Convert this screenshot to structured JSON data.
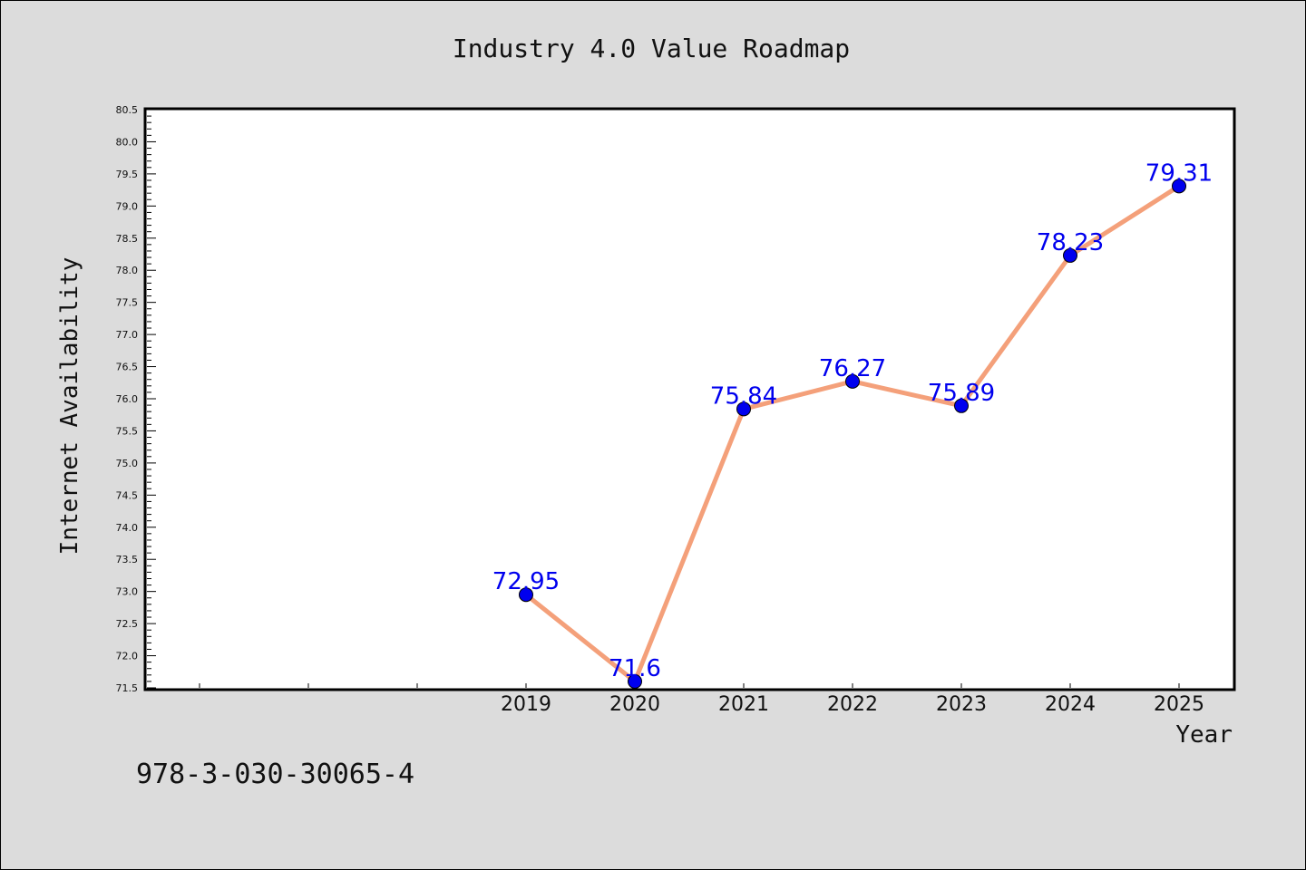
{
  "chart_data": {
    "type": "line",
    "title": "Industry 4.0 Value Roadmap",
    "xlabel": "Year",
    "ylabel": "Internet Availability",
    "x": [
      2019,
      2020,
      2021,
      2022,
      2023,
      2024,
      2025
    ],
    "values": [
      72.95,
      71.6,
      75.84,
      76.27,
      75.89,
      78.23,
      79.31
    ],
    "data_labels": [
      "72.95",
      "71.6",
      "75.84",
      "76.27",
      "75.89",
      "78.23",
      "79.31"
    ],
    "x_tick_labels": [
      "2019",
      "2020",
      "2021",
      "2022",
      "2023",
      "2024",
      "2025"
    ],
    "x_minor_ticks": [
      2016,
      2017,
      2018
    ],
    "ylim": [
      71.5,
      80.5
    ],
    "y_ticks": [
      "71.5",
      "72.0",
      "72.5",
      "73.0",
      "73.5",
      "74.0",
      "74.5",
      "75.0",
      "75.5",
      "76.0",
      "76.5",
      "77.0",
      "77.5",
      "78.0",
      "78.5",
      "79.0",
      "79.5",
      "80.0",
      "80.5"
    ],
    "xlim": [
      2015.5,
      2025.5
    ],
    "grid": false,
    "line_color": "#f4a07a",
    "marker_color": "#0000ee",
    "label_color": "#0000ee"
  },
  "footer": {
    "code": "978-3-030-30065-4"
  }
}
